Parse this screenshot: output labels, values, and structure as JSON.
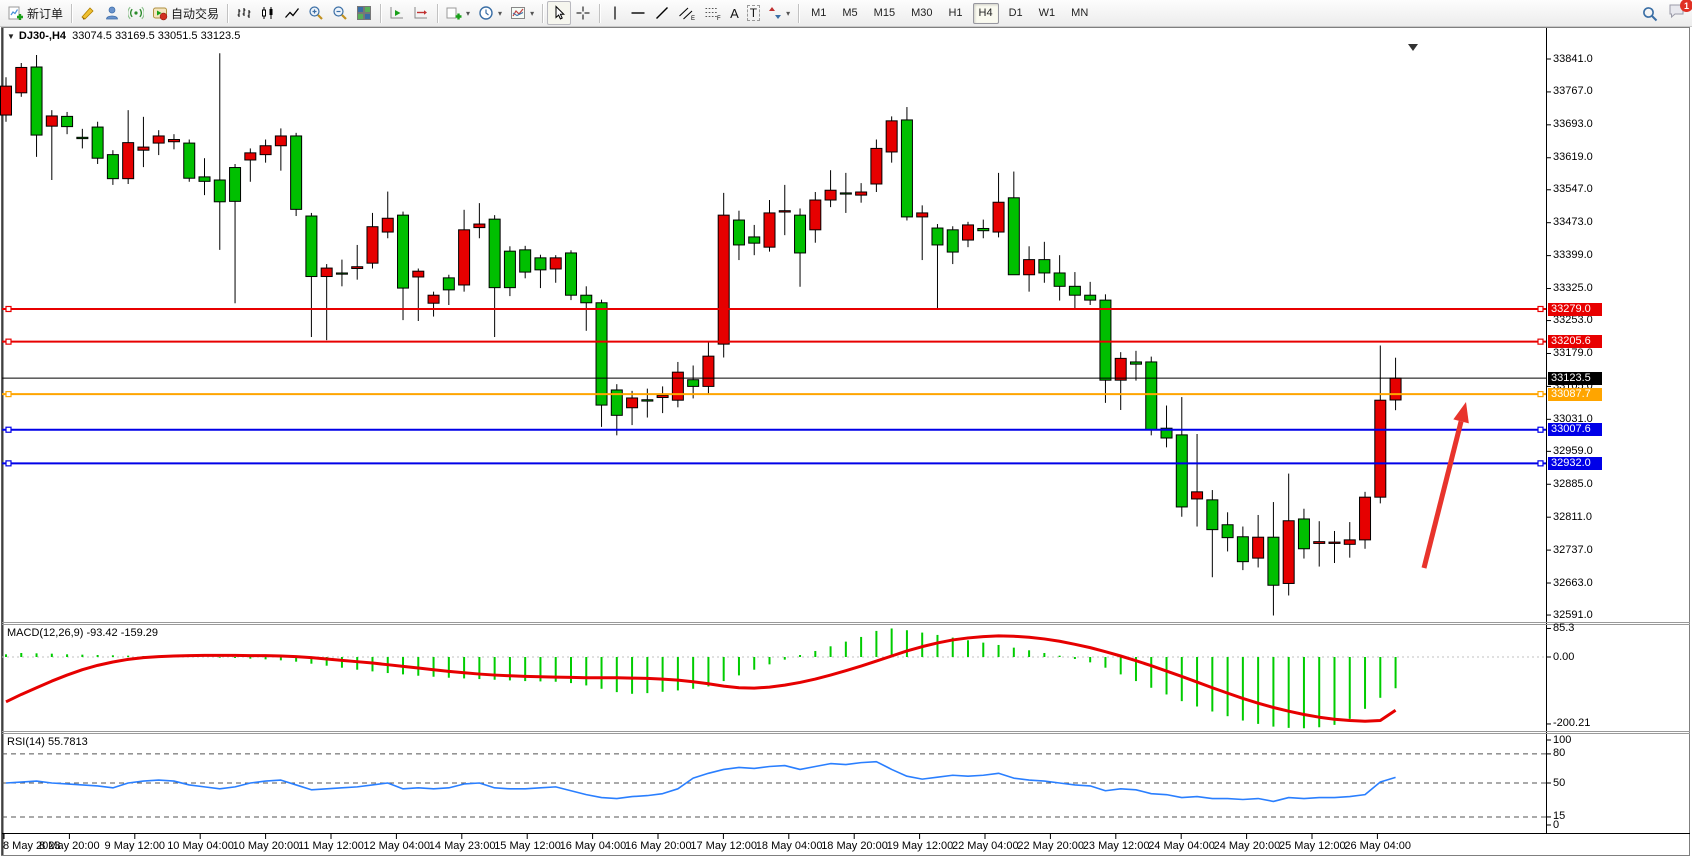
{
  "toolbar": {
    "new_order_label": "新订单",
    "auto_trading_label": "自动交易",
    "timeframes": [
      "M1",
      "M5",
      "M15",
      "M30",
      "H1",
      "H4",
      "D1",
      "W1",
      "MN"
    ],
    "active_timeframe": "H4",
    "notification_count": "1"
  },
  "chart_window": {
    "title_symbol": "DJ30-,H4",
    "title_ohlc": "33074.5 33169.5 33051.5 33123.5",
    "open": "33074.5",
    "high": "33169.5",
    "low": "33051.5",
    "close": "33123.5"
  },
  "price_axis": {
    "ticks": [
      "33841.0",
      "33767.0",
      "33693.0",
      "33619.0",
      "33547.0",
      "33473.0",
      "33399.0",
      "33325.0",
      "33253.0",
      "33179.0",
      "33105.0",
      "33031.0",
      "32959.0",
      "32885.0",
      "32811.0",
      "32737.0",
      "32663.0",
      "32591.0"
    ]
  },
  "time_axis": {
    "labels": [
      "8 May 2023",
      "8 May 20:00",
      "9 May 12:00",
      "10 May 04:00",
      "10 May 20:00",
      "11 May 12:00",
      "12 May 04:00",
      "14 May 23:00",
      "15 May 12:00",
      "16 May 04:00",
      "16 May 20:00",
      "17 May 12:00",
      "18 May 04:00",
      "18 May 20:00",
      "19 May 12:00",
      "22 May 04:00",
      "22 May 20:00",
      "23 May 12:00",
      "24 May 04:00",
      "24 May 20:00",
      "25 May 12:00",
      "26 May 04:00"
    ]
  },
  "lines": [
    {
      "price": 33279.0,
      "label": "33279.0",
      "color": "#e80000",
      "width": 2,
      "handles": true
    },
    {
      "price": 33205.6,
      "label": "33205.6",
      "color": "#e80000",
      "width": 2,
      "handles": true
    },
    {
      "price": 33123.5,
      "label": "33123.5",
      "color": "#000000",
      "width": 1,
      "handles": false
    },
    {
      "price": 33087.7,
      "label": "33087.7",
      "color": "#ffa500",
      "width": 2,
      "handles": true
    },
    {
      "price": 33007.6,
      "label": "33007.6",
      "color": "#0000e8",
      "width": 2,
      "handles": true
    },
    {
      "price": 32932.0,
      "label": "32932.0",
      "color": "#0000e8",
      "width": 2,
      "handles": true
    }
  ],
  "arrow": {
    "color": "#e8342c",
    "tail": [
      1424,
      568
    ],
    "head": [
      1466,
      402
    ]
  },
  "chart_data": {
    "type": "candlestick",
    "symbol": "DJ30-",
    "timeframe": "H4",
    "up_color": "#e60000",
    "down_color": "#00bf00",
    "candles": [
      [
        33715,
        33800,
        33700,
        33780
      ],
      [
        33765,
        33832,
        33756,
        33822
      ],
      [
        33823,
        33850,
        33621,
        33670
      ],
      [
        33690,
        33726,
        33569,
        33713
      ],
      [
        33712,
        33722,
        33672,
        33689
      ],
      [
        33665,
        33684,
        33640,
        33662
      ],
      [
        33688,
        33700,
        33605,
        33618
      ],
      [
        33626,
        33636,
        33558,
        33572
      ],
      [
        33572,
        33726,
        33560,
        33653
      ],
      [
        33636,
        33711,
        33598,
        33643
      ],
      [
        33652,
        33681,
        33625,
        33668
      ],
      [
        33655,
        33672,
        33638,
        33660
      ],
      [
        33652,
        33660,
        33565,
        33573
      ],
      [
        33576,
        33618,
        33535,
        33566
      ],
      [
        33569,
        33854,
        33412,
        33520
      ],
      [
        33597,
        33605,
        33292,
        33521
      ],
      [
        33614,
        33640,
        33565,
        33630
      ],
      [
        33626,
        33660,
        33608,
        33646
      ],
      [
        33646,
        33685,
        33590,
        33668
      ],
      [
        33668,
        33675,
        33488,
        33503
      ],
      [
        33488,
        33495,
        33216,
        33352
      ],
      [
        33352,
        33380,
        33209,
        33371
      ],
      [
        33360,
        33390,
        33330,
        33358
      ],
      [
        33370,
        33423,
        33345,
        33374
      ],
      [
        33382,
        33495,
        33370,
        33464
      ],
      [
        33452,
        33543,
        33438,
        33483
      ],
      [
        33490,
        33498,
        33254,
        33326
      ],
      [
        33351,
        33370,
        33252,
        33364
      ],
      [
        33292,
        33318,
        33262,
        33310
      ],
      [
        33349,
        33356,
        33288,
        33322
      ],
      [
        33333,
        33502,
        33318,
        33457
      ],
      [
        33462,
        33517,
        33438,
        33470
      ],
      [
        33481,
        33490,
        33216,
        33327
      ],
      [
        33409,
        33420,
        33308,
        33327
      ],
      [
        33412,
        33421,
        33348,
        33362
      ],
      [
        33394,
        33401,
        33326,
        33367
      ],
      [
        33369,
        33400,
        33338,
        33394
      ],
      [
        33405,
        33411,
        33299,
        33310
      ],
      [
        33310,
        33330,
        33230,
        33293
      ],
      [
        33293,
        33300,
        33014,
        33063
      ],
      [
        33097,
        33110,
        32995,
        33040
      ],
      [
        33057,
        33095,
        33018,
        33079
      ],
      [
        33075,
        33100,
        33035,
        33072
      ],
      [
        33080,
        33105,
        33045,
        33085
      ],
      [
        33074,
        33160,
        33058,
        33137
      ],
      [
        33120,
        33152,
        33078,
        33105
      ],
      [
        33105,
        33207,
        33088,
        33173
      ],
      [
        33200,
        33540,
        33170,
        33490
      ],
      [
        33479,
        33500,
        33389,
        33423
      ],
      [
        33441,
        33468,
        33400,
        33427
      ],
      [
        33418,
        33524,
        33408,
        33495
      ],
      [
        33497,
        33558,
        33445,
        33500
      ],
      [
        33490,
        33505,
        33329,
        33405
      ],
      [
        33457,
        33542,
        33428,
        33524
      ],
      [
        33524,
        33591,
        33508,
        33546
      ],
      [
        33540,
        33585,
        33495,
        33538
      ],
      [
        33535,
        33562,
        33518,
        33542
      ],
      [
        33560,
        33660,
        33542,
        33640
      ],
      [
        33632,
        33712,
        33608,
        33702
      ],
      [
        33704,
        33733,
        33478,
        33486
      ],
      [
        33486,
        33512,
        33389,
        33495
      ],
      [
        33461,
        33470,
        33277,
        33423
      ],
      [
        33457,
        33465,
        33380,
        33407
      ],
      [
        33434,
        33475,
        33418,
        33468
      ],
      [
        33460,
        33480,
        33438,
        33455
      ],
      [
        33452,
        33585,
        33440,
        33519
      ],
      [
        33529,
        33588,
        33356,
        33356
      ],
      [
        33356,
        33420,
        33318,
        33390
      ],
      [
        33390,
        33430,
        33338,
        33360
      ],
      [
        33360,
        33400,
        33298,
        33330
      ],
      [
        33330,
        33362,
        33278,
        33310
      ],
      [
        33310,
        33340,
        33288,
        33299
      ],
      [
        33299,
        33312,
        33068,
        33119
      ],
      [
        33119,
        33182,
        33052,
        33168
      ],
      [
        33160,
        33185,
        33118,
        33155
      ],
      [
        33160,
        33172,
        32995,
        33007
      ],
      [
        33011,
        33062,
        32968,
        32989
      ],
      [
        32996,
        33081,
        32812,
        32834
      ],
      [
        32852,
        32998,
        32790,
        32868
      ],
      [
        32850,
        32872,
        32676,
        32783
      ],
      [
        32794,
        32822,
        32734,
        32765
      ],
      [
        32767,
        32790,
        32692,
        32711
      ],
      [
        32719,
        32816,
        32698,
        32766
      ],
      [
        32766,
        32845,
        32590,
        32658
      ],
      [
        32662,
        32909,
        32635,
        32803
      ],
      [
        32807,
        32830,
        32718,
        32740
      ],
      [
        32752,
        32802,
        32700,
        32756
      ],
      [
        32752,
        32780,
        32708,
        32755
      ],
      [
        32750,
        32800,
        32720,
        32760
      ],
      [
        32760,
        32868,
        32740,
        32856
      ],
      [
        32856,
        33197,
        32842,
        33074
      ],
      [
        33074.5,
        33169.5,
        33051.5,
        33123.5
      ]
    ],
    "macd": {
      "label": "MACD(12,26,9) -93.42 -159.29",
      "main": -93.42,
      "signal": -159.29,
      "axis": [
        "85.3",
        "0.00",
        "-200.21"
      ],
      "axis_values": [
        85.3,
        0,
        -200.21
      ],
      "hist_color": "#00cc00",
      "line_color": "#e60000",
      "hist": [
        8,
        12,
        11,
        10,
        8,
        7,
        6,
        5,
        4,
        3,
        2,
        2,
        1,
        0,
        -2,
        -3,
        -5,
        -7,
        -10,
        -14,
        -20,
        -26,
        -32,
        -38,
        -43,
        -48,
        -52,
        -56,
        -59,
        -62,
        -64,
        -66,
        -68,
        -70,
        -72,
        -73,
        -74,
        -78,
        -85,
        -95,
        -105,
        -110,
        -108,
        -104,
        -100,
        -95,
        -88,
        -72,
        -55,
        -38,
        -22,
        -8,
        6,
        18,
        32,
        46,
        60,
        78,
        85.3,
        80,
        73,
        66,
        58,
        50,
        43,
        36,
        28,
        20,
        12,
        4,
        -6,
        -16,
        -32,
        -52,
        -72,
        -92,
        -112,
        -132,
        -148,
        -163,
        -177,
        -190,
        -200,
        -208,
        -212,
        -213,
        -210,
        -203,
        -185,
        -155,
        -122,
        -93.42
      ],
      "signal_line": [
        -134,
        -112,
        -92,
        -72,
        -54,
        -38,
        -25,
        -15,
        -7,
        -2,
        1,
        3,
        4,
        5,
        5,
        5,
        4,
        4,
        3,
        1,
        -2,
        -6,
        -10,
        -14,
        -18,
        -23,
        -28,
        -33,
        -38,
        -43,
        -47,
        -51,
        -54,
        -56,
        -58,
        -59,
        -60,
        -61,
        -62,
        -62,
        -62,
        -63,
        -64,
        -66,
        -69,
        -74,
        -80,
        -87,
        -92,
        -93,
        -90,
        -84,
        -76,
        -66,
        -54,
        -41,
        -27,
        -12,
        3,
        18,
        31,
        42,
        51,
        57,
        61,
        63,
        62,
        59,
        54,
        47,
        38,
        28,
        16,
        3,
        -11,
        -26,
        -42,
        -58,
        -75,
        -92,
        -108,
        -124,
        -138,
        -151,
        -162,
        -172,
        -180,
        -186,
        -190,
        -192,
        -190,
        -159.29
      ]
    },
    "rsi": {
      "label": "RSI(14) 55.7813",
      "value": 55.7813,
      "levels": [
        80,
        50,
        15
      ],
      "axis": [
        "100",
        "80",
        "50",
        "15",
        "0"
      ],
      "color": "#2a7fff",
      "values": [
        50,
        51,
        52,
        50,
        49,
        48,
        47,
        45,
        50,
        52,
        53,
        52,
        48,
        46,
        44,
        46,
        50,
        52,
        53,
        48,
        43,
        44,
        45,
        46,
        48,
        50,
        44,
        45,
        44,
        45,
        49,
        50,
        45,
        44,
        44,
        45,
        46,
        42,
        38,
        35,
        34,
        36,
        37,
        39,
        44,
        55,
        60,
        64,
        66,
        65,
        67,
        68,
        64,
        67,
        70,
        69,
        71,
        72,
        64,
        57,
        54,
        56,
        58,
        57,
        58,
        60,
        55,
        53,
        52,
        50,
        48,
        47,
        42,
        44,
        43,
        39,
        38,
        35,
        36,
        34,
        34,
        33,
        34,
        31,
        35,
        34,
        35,
        35,
        36,
        38,
        51,
        55.78
      ]
    }
  }
}
